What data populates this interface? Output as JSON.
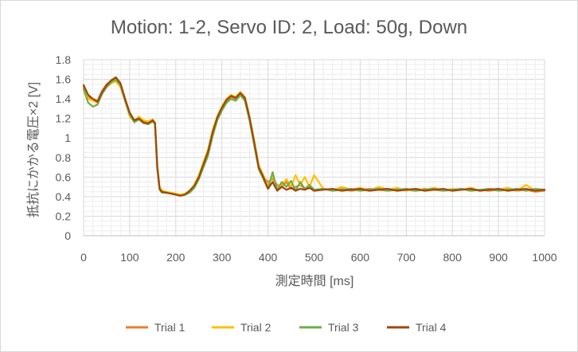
{
  "chart_data": {
    "type": "line",
    "title": "Motion: 1-2, Servo ID: 2, Load: 50g, Down",
    "xlabel": "測定時間 [ms]",
    "ylabel": "抵抗にかかる電圧×2 [V]",
    "xlim": [
      0,
      1000
    ],
    "ylim": [
      0,
      1.8
    ],
    "x_ticks": [
      "0",
      "100",
      "200",
      "300",
      "400",
      "500",
      "600",
      "700",
      "800",
      "900",
      "1000"
    ],
    "y_ticks": [
      "0",
      "0.2",
      "0.4",
      "0.6",
      "0.8",
      "1",
      "1.2",
      "1.4",
      "1.6",
      "1.8"
    ],
    "grid": true,
    "legend_position": "bottom",
    "series": [
      {
        "name": "Trial 1",
        "color": "#ED7D31",
        "x": [
          0,
          10,
          20,
          30,
          40,
          50,
          60,
          70,
          80,
          90,
          100,
          110,
          120,
          130,
          140,
          150,
          155,
          160,
          165,
          170,
          180,
          190,
          200,
          210,
          220,
          230,
          240,
          250,
          260,
          270,
          280,
          290,
          300,
          310,
          320,
          330,
          340,
          350,
          360,
          370,
          380,
          390,
          400,
          410,
          420,
          430,
          440,
          450,
          460,
          470,
          480,
          490,
          500,
          520,
          540,
          560,
          580,
          600,
          620,
          640,
          660,
          680,
          700,
          720,
          740,
          760,
          780,
          800,
          820,
          840,
          860,
          880,
          900,
          920,
          940,
          960,
          980,
          1000
        ],
        "y": [
          1.52,
          1.42,
          1.4,
          1.38,
          1.48,
          1.55,
          1.58,
          1.6,
          1.55,
          1.4,
          1.25,
          1.18,
          1.2,
          1.17,
          1.16,
          1.18,
          1.15,
          0.7,
          0.48,
          0.45,
          0.44,
          0.43,
          0.42,
          0.41,
          0.42,
          0.45,
          0.5,
          0.6,
          0.72,
          0.85,
          1.05,
          1.2,
          1.3,
          1.38,
          1.42,
          1.4,
          1.45,
          1.4,
          1.2,
          0.95,
          0.7,
          0.6,
          0.55,
          0.58,
          0.52,
          0.5,
          0.55,
          0.48,
          0.5,
          0.52,
          0.48,
          0.5,
          0.47,
          0.48,
          0.47,
          0.48,
          0.46,
          0.47,
          0.48,
          0.47,
          0.46,
          0.48,
          0.47,
          0.46,
          0.48,
          0.47,
          0.46,
          0.47,
          0.48,
          0.46,
          0.47,
          0.46,
          0.47,
          0.48,
          0.46,
          0.47,
          0.45,
          0.46
        ]
      },
      {
        "name": "Trial 2",
        "color": "#FFC000",
        "x": [
          0,
          10,
          20,
          30,
          40,
          50,
          60,
          70,
          80,
          90,
          100,
          110,
          120,
          130,
          140,
          150,
          155,
          160,
          165,
          170,
          180,
          190,
          200,
          210,
          220,
          230,
          240,
          250,
          260,
          270,
          280,
          290,
          300,
          310,
          320,
          330,
          340,
          350,
          360,
          370,
          380,
          390,
          400,
          410,
          420,
          430,
          440,
          450,
          460,
          470,
          480,
          490,
          500,
          520,
          540,
          560,
          580,
          600,
          620,
          640,
          660,
          680,
          700,
          720,
          740,
          760,
          780,
          800,
          820,
          840,
          860,
          880,
          900,
          920,
          940,
          960,
          980,
          1000
        ],
        "y": [
          1.5,
          1.4,
          1.38,
          1.36,
          1.46,
          1.52,
          1.56,
          1.58,
          1.52,
          1.38,
          1.22,
          1.17,
          1.22,
          1.18,
          1.17,
          1.19,
          1.16,
          0.72,
          0.5,
          0.46,
          0.45,
          0.44,
          0.43,
          0.42,
          0.43,
          0.46,
          0.52,
          0.62,
          0.75,
          0.88,
          1.08,
          1.22,
          1.32,
          1.4,
          1.44,
          1.42,
          1.47,
          1.42,
          1.22,
          0.98,
          0.72,
          0.62,
          0.5,
          0.62,
          0.48,
          0.52,
          0.58,
          0.5,
          0.62,
          0.52,
          0.6,
          0.5,
          0.62,
          0.48,
          0.46,
          0.5,
          0.47,
          0.49,
          0.46,
          0.5,
          0.47,
          0.49,
          0.46,
          0.48,
          0.47,
          0.49,
          0.46,
          0.48,
          0.47,
          0.49,
          0.46,
          0.48,
          0.47,
          0.49,
          0.46,
          0.52,
          0.46,
          0.47
        ]
      },
      {
        "name": "Trial 3",
        "color": "#70AD47",
        "x": [
          0,
          10,
          20,
          30,
          40,
          50,
          60,
          70,
          80,
          90,
          100,
          110,
          120,
          130,
          140,
          150,
          155,
          160,
          165,
          170,
          180,
          190,
          200,
          210,
          220,
          230,
          240,
          250,
          260,
          270,
          280,
          290,
          300,
          310,
          320,
          330,
          340,
          350,
          360,
          370,
          380,
          390,
          400,
          410,
          420,
          430,
          440,
          450,
          460,
          470,
          480,
          490,
          500,
          520,
          540,
          560,
          580,
          600,
          620,
          640,
          660,
          680,
          700,
          720,
          740,
          760,
          780,
          800,
          820,
          840,
          860,
          880,
          900,
          920,
          940,
          960,
          980,
          1000
        ],
        "y": [
          1.5,
          1.36,
          1.32,
          1.34,
          1.45,
          1.52,
          1.57,
          1.6,
          1.54,
          1.38,
          1.24,
          1.16,
          1.19,
          1.15,
          1.14,
          1.17,
          1.14,
          0.68,
          0.47,
          0.44,
          0.44,
          0.43,
          0.42,
          0.41,
          0.42,
          0.44,
          0.49,
          0.58,
          0.7,
          0.82,
          1.02,
          1.18,
          1.28,
          1.36,
          1.4,
          1.38,
          1.44,
          1.38,
          1.18,
          0.93,
          0.68,
          0.58,
          0.48,
          0.65,
          0.47,
          0.55,
          0.5,
          0.56,
          0.46,
          0.55,
          0.48,
          0.52,
          0.47,
          0.48,
          0.46,
          0.47,
          0.48,
          0.46,
          0.47,
          0.48,
          0.46,
          0.47,
          0.48,
          0.46,
          0.47,
          0.48,
          0.46,
          0.47,
          0.48,
          0.46,
          0.47,
          0.48,
          0.46,
          0.47,
          0.48,
          0.46,
          0.48,
          0.47
        ]
      },
      {
        "name": "Trial 4",
        "color": "#9E480E",
        "x": [
          0,
          10,
          20,
          30,
          40,
          50,
          60,
          70,
          80,
          90,
          100,
          110,
          120,
          130,
          140,
          150,
          155,
          160,
          165,
          170,
          180,
          190,
          200,
          210,
          220,
          230,
          240,
          250,
          260,
          270,
          280,
          290,
          300,
          310,
          320,
          330,
          340,
          350,
          360,
          370,
          380,
          390,
          400,
          410,
          420,
          430,
          440,
          450,
          460,
          470,
          480,
          490,
          500,
          520,
          540,
          560,
          580,
          600,
          620,
          640,
          660,
          680,
          700,
          720,
          740,
          760,
          780,
          800,
          820,
          840,
          860,
          880,
          900,
          920,
          940,
          960,
          980,
          1000
        ],
        "y": [
          1.54,
          1.44,
          1.4,
          1.37,
          1.47,
          1.54,
          1.59,
          1.62,
          1.56,
          1.4,
          1.26,
          1.18,
          1.2,
          1.16,
          1.15,
          1.18,
          1.15,
          0.7,
          0.48,
          0.45,
          0.44,
          0.43,
          0.42,
          0.41,
          0.42,
          0.46,
          0.51,
          0.6,
          0.73,
          0.86,
          1.06,
          1.21,
          1.31,
          1.39,
          1.43,
          1.41,
          1.46,
          1.41,
          1.21,
          0.96,
          0.7,
          0.6,
          0.48,
          0.55,
          0.46,
          0.5,
          0.47,
          0.49,
          0.46,
          0.48,
          0.47,
          0.49,
          0.46,
          0.47,
          0.48,
          0.46,
          0.47,
          0.48,
          0.46,
          0.47,
          0.48,
          0.46,
          0.47,
          0.48,
          0.46,
          0.47,
          0.48,
          0.46,
          0.47,
          0.48,
          0.46,
          0.47,
          0.48,
          0.46,
          0.47,
          0.48,
          0.46,
          0.47
        ]
      }
    ]
  }
}
